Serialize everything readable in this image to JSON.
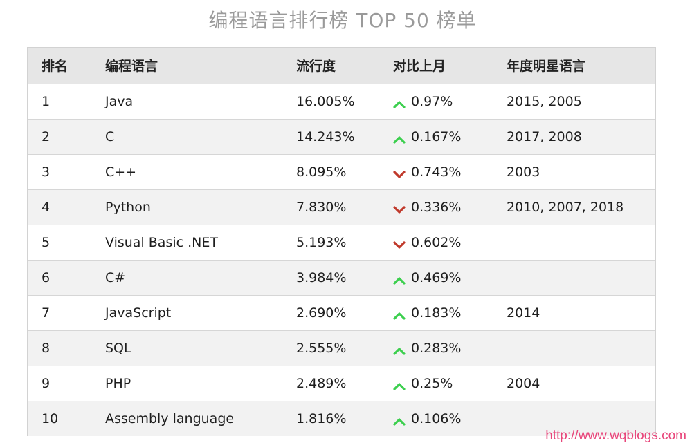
{
  "title": "编程语言排行榜 TOP 50 榜单",
  "colors": {
    "up": "#3ccf4e",
    "down": "#c0392b",
    "watermark": "#e8457a",
    "header_bg": "#e6e6e6"
  },
  "table": {
    "headers": {
      "rank": "排名",
      "language": "编程语言",
      "popularity": "流行度",
      "change": "对比上月",
      "star_years": "年度明星语言"
    },
    "rows": [
      {
        "rank": "1",
        "language": "Java",
        "popularity": "16.005%",
        "trend": "up",
        "trend_icon": "arrow-up-icon",
        "change": "0.97%",
        "star_years": "2015, 2005"
      },
      {
        "rank": "2",
        "language": "C",
        "popularity": "14.243%",
        "trend": "up",
        "trend_icon": "arrow-up-icon",
        "change": "0.167%",
        "star_years": "2017, 2008"
      },
      {
        "rank": "3",
        "language": "C++",
        "popularity": "8.095%",
        "trend": "down",
        "trend_icon": "arrow-down-icon",
        "change": "0.743%",
        "star_years": "2003"
      },
      {
        "rank": "4",
        "language": "Python",
        "popularity": "7.830%",
        "trend": "down",
        "trend_icon": "arrow-down-icon",
        "change": "0.336%",
        "star_years": "2010, 2007, 2018"
      },
      {
        "rank": "5",
        "language": "Visual Basic .NET",
        "popularity": "5.193%",
        "trend": "down",
        "trend_icon": "arrow-down-icon",
        "change": "0.602%",
        "star_years": ""
      },
      {
        "rank": "6",
        "language": "C#",
        "popularity": "3.984%",
        "trend": "up",
        "trend_icon": "arrow-up-icon",
        "change": "0.469%",
        "star_years": ""
      },
      {
        "rank": "7",
        "language": "JavaScript",
        "popularity": "2.690%",
        "trend": "up",
        "trend_icon": "arrow-up-icon",
        "change": "0.183%",
        "star_years": "2014"
      },
      {
        "rank": "8",
        "language": "SQL",
        "popularity": "2.555%",
        "trend": "up",
        "trend_icon": "arrow-up-icon",
        "change": "0.283%",
        "star_years": ""
      },
      {
        "rank": "9",
        "language": "PHP",
        "popularity": "2.489%",
        "trend": "up",
        "trend_icon": "arrow-up-icon",
        "change": "0.25%",
        "star_years": "2004"
      },
      {
        "rank": "10",
        "language": "Assembly language",
        "popularity": "1.816%",
        "trend": "up",
        "trend_icon": "arrow-up-icon",
        "change": "0.106%",
        "star_years": ""
      }
    ]
  },
  "watermark": "http://www.wqblogs.com"
}
